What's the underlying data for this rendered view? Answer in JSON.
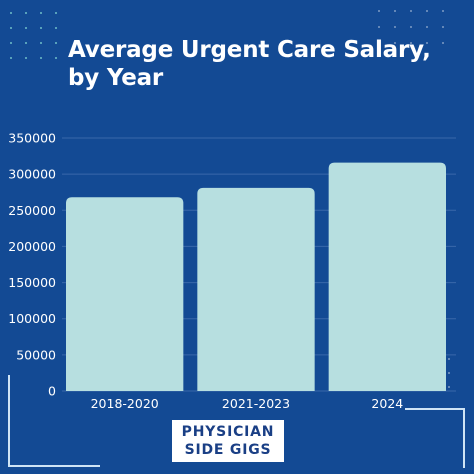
{
  "title": "Average Urgent Care Salary, by Year",
  "brand": {
    "line1": "PHYSICIAN",
    "line2": "SIDE GIGS"
  },
  "colors": {
    "background": "#134a94",
    "bar": "#b7dfe0",
    "text": "#ffffff",
    "brand_text": "#1a3f85"
  },
  "chart_data": {
    "type": "bar",
    "title": "Average Urgent Care Salary, by Year",
    "xlabel": "",
    "ylabel": "",
    "categories": [
      "2018-2020",
      "2021-2023",
      "2024"
    ],
    "values": [
      268000,
      281000,
      316000
    ],
    "ylim": [
      0,
      350000
    ],
    "yticks": [
      "0",
      "50000",
      "100000",
      "150000",
      "200000",
      "250000",
      "300000",
      "350000"
    ],
    "grid": true
  }
}
